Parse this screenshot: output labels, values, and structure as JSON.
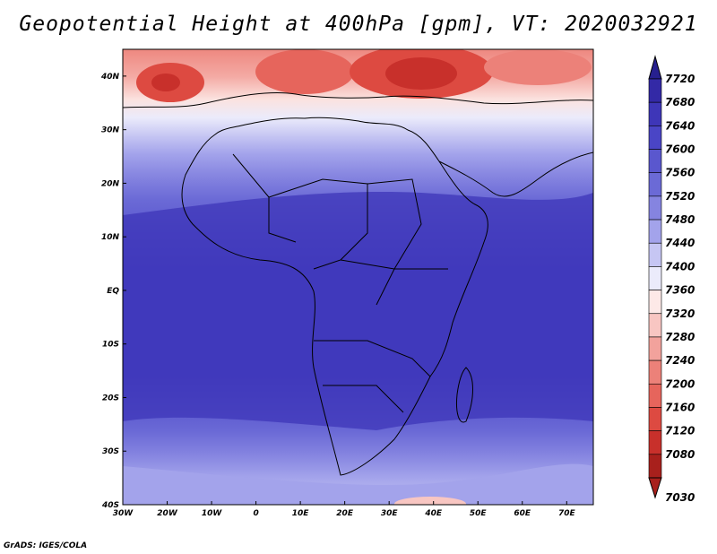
{
  "title": "Geopotential Height at 400hPa [gpm], VT: 2020032921",
  "credit": "GrADS: IGES/COLA",
  "map": {
    "lon_range": [
      -30,
      76
    ],
    "lat_range": [
      -40,
      45
    ],
    "lon_ticks": [
      {
        "value": -30,
        "label": "30W"
      },
      {
        "value": -20,
        "label": "20W"
      },
      {
        "value": -10,
        "label": "10W"
      },
      {
        "value": 0,
        "label": "0"
      },
      {
        "value": 10,
        "label": "10E"
      },
      {
        "value": 20,
        "label": "20E"
      },
      {
        "value": 30,
        "label": "30E"
      },
      {
        "value": 40,
        "label": "40E"
      },
      {
        "value": 50,
        "label": "50E"
      },
      {
        "value": 60,
        "label": "60E"
      },
      {
        "value": 70,
        "label": "70E"
      }
    ],
    "lat_ticks": [
      {
        "value": 40,
        "label": "40N"
      },
      {
        "value": 30,
        "label": "30N"
      },
      {
        "value": 20,
        "label": "20N"
      },
      {
        "value": 10,
        "label": "10N"
      },
      {
        "value": 0,
        "label": "EQ"
      },
      {
        "value": -10,
        "label": "10S"
      },
      {
        "value": -20,
        "label": "20S"
      },
      {
        "value": -30,
        "label": "30S"
      },
      {
        "value": -40,
        "label": "40S"
      }
    ]
  },
  "colorbar": {
    "levels": [
      {
        "label": "7720",
        "color": "#27208f"
      },
      {
        "label": "7680",
        "color": "#3329a6"
      },
      {
        "label": "7640",
        "color": "#3e36b8"
      },
      {
        "label": "7600",
        "color": "#4a45c6"
      },
      {
        "label": "7560",
        "color": "#5a57ce"
      },
      {
        "label": "7520",
        "color": "#6b6ad6"
      },
      {
        "label": "7480",
        "color": "#8584e0"
      },
      {
        "label": "7440",
        "color": "#a3a3eb"
      },
      {
        "label": "7400",
        "color": "#c6c6f3"
      },
      {
        "label": "7360",
        "color": "#ebebfb"
      },
      {
        "label": "7320",
        "color": "#fde9e7"
      },
      {
        "label": "7280",
        "color": "#f8c6c2"
      },
      {
        "label": "7240",
        "color": "#f2a29c"
      },
      {
        "label": "7200",
        "color": "#ec8179"
      },
      {
        "label": "7160",
        "color": "#e6655c"
      },
      {
        "label": "7120",
        "color": "#dd4a41"
      },
      {
        "label": "7080",
        "color": "#c8302b"
      },
      {
        "label": "7030",
        "color": "#a8201c"
      }
    ]
  }
}
